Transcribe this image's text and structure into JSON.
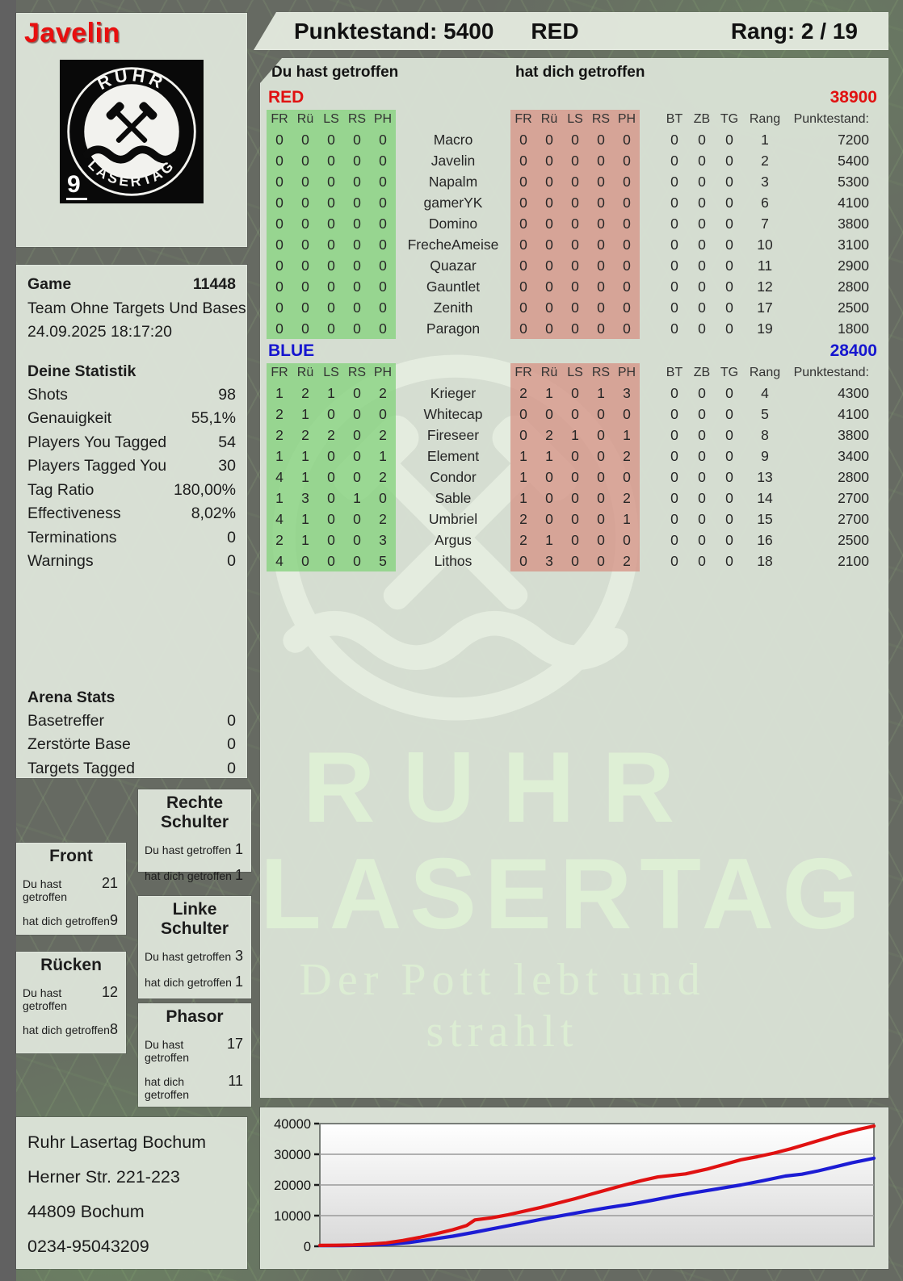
{
  "page": {
    "player_name": "Javelin",
    "header": {
      "punktestand": "Punktestand: 5400",
      "team": "RED",
      "rang": "Rang: 2 / 19"
    },
    "logo": {
      "arc_top": "RUHR",
      "arc_bottom": "LASERTAG",
      "badge": "9"
    }
  },
  "game_info": {
    "label": "Game",
    "number": "11448",
    "mode": "Team Ohne Targets Und Bases",
    "datetime": "24.09.2025 18:17:20"
  },
  "your_stats": {
    "title": "Deine Statistik",
    "rows": [
      [
        "Shots",
        "98"
      ],
      [
        "Genauigkeit",
        "55,1%"
      ],
      [
        "Players You Tagged",
        "54"
      ],
      [
        "Players Tagged You",
        "30"
      ],
      [
        "Tag Ratio",
        "180,00%"
      ],
      [
        "Effectiveness",
        "8,02%"
      ],
      [
        "Terminations",
        "0"
      ],
      [
        "Warnings",
        "0"
      ]
    ]
  },
  "arena_stats": {
    "title": "Arena Stats",
    "rows": [
      [
        "Basetreffer",
        "0"
      ],
      [
        "Zerstörte Base",
        "0"
      ],
      [
        "Targets Tagged",
        "0"
      ]
    ]
  },
  "hit_labels": {
    "given": "Du hast getroffen",
    "taken": "hat dich getroffen"
  },
  "hit_boxes": [
    {
      "title": "Front",
      "given": "21",
      "taken": "9"
    },
    {
      "title": "Rücken",
      "given": "12",
      "taken": "8"
    },
    {
      "title": "Rechte Schulter",
      "given": "1",
      "taken": "1"
    },
    {
      "title": "Linke Schulter",
      "given": "3",
      "taken": "1"
    },
    {
      "title": "Phasor",
      "given": "17",
      "taken": "11"
    }
  ],
  "score_table": {
    "given_label": "Du hast getroffen",
    "taken_label": "hat dich getroffen",
    "hit_columns": [
      "FR",
      "Rü",
      "LS",
      "RS",
      "PH"
    ],
    "extra_columns": [
      "BT",
      "ZB",
      "TG",
      "Rang",
      "Punktestand:"
    ],
    "teams": [
      {
        "name": "RED",
        "color": "#e01111",
        "total": "38900",
        "players": [
          {
            "name": "Macro",
            "given": [
              0,
              0,
              0,
              0,
              0
            ],
            "taken": [
              0,
              0,
              0,
              0,
              0
            ],
            "bt": 0,
            "zb": 0,
            "tg": 0,
            "rang": 1,
            "punktestand": 7200
          },
          {
            "name": "Javelin",
            "given": [
              0,
              0,
              0,
              0,
              0
            ],
            "taken": [
              0,
              0,
              0,
              0,
              0
            ],
            "bt": 0,
            "zb": 0,
            "tg": 0,
            "rang": 2,
            "punktestand": 5400
          },
          {
            "name": "Napalm",
            "given": [
              0,
              0,
              0,
              0,
              0
            ],
            "taken": [
              0,
              0,
              0,
              0,
              0
            ],
            "bt": 0,
            "zb": 0,
            "tg": 0,
            "rang": 3,
            "punktestand": 5300
          },
          {
            "name": "gamerYK",
            "given": [
              0,
              0,
              0,
              0,
              0
            ],
            "taken": [
              0,
              0,
              0,
              0,
              0
            ],
            "bt": 0,
            "zb": 0,
            "tg": 0,
            "rang": 6,
            "punktestand": 4100
          },
          {
            "name": "Domino",
            "given": [
              0,
              0,
              0,
              0,
              0
            ],
            "taken": [
              0,
              0,
              0,
              0,
              0
            ],
            "bt": 0,
            "zb": 0,
            "tg": 0,
            "rang": 7,
            "punktestand": 3800
          },
          {
            "name": "FrecheAmeise",
            "given": [
              0,
              0,
              0,
              0,
              0
            ],
            "taken": [
              0,
              0,
              0,
              0,
              0
            ],
            "bt": 0,
            "zb": 0,
            "tg": 0,
            "rang": 10,
            "punktestand": 3100
          },
          {
            "name": "Quazar",
            "given": [
              0,
              0,
              0,
              0,
              0
            ],
            "taken": [
              0,
              0,
              0,
              0,
              0
            ],
            "bt": 0,
            "zb": 0,
            "tg": 0,
            "rang": 11,
            "punktestand": 2900
          },
          {
            "name": "Gauntlet",
            "given": [
              0,
              0,
              0,
              0,
              0
            ],
            "taken": [
              0,
              0,
              0,
              0,
              0
            ],
            "bt": 0,
            "zb": 0,
            "tg": 0,
            "rang": 12,
            "punktestand": 2800
          },
          {
            "name": "Zenith",
            "given": [
              0,
              0,
              0,
              0,
              0
            ],
            "taken": [
              0,
              0,
              0,
              0,
              0
            ],
            "bt": 0,
            "zb": 0,
            "tg": 0,
            "rang": 17,
            "punktestand": 2500
          },
          {
            "name": "Paragon",
            "given": [
              0,
              0,
              0,
              0,
              0
            ],
            "taken": [
              0,
              0,
              0,
              0,
              0
            ],
            "bt": 0,
            "zb": 0,
            "tg": 0,
            "rang": 19,
            "punktestand": 1800
          }
        ]
      },
      {
        "name": "BLUE",
        "color": "#1616cf",
        "total": "28400",
        "players": [
          {
            "name": "Krieger",
            "given": [
              1,
              2,
              1,
              0,
              2
            ],
            "taken": [
              2,
              1,
              0,
              1,
              3
            ],
            "bt": 0,
            "zb": 0,
            "tg": 0,
            "rang": 4,
            "punktestand": 4300
          },
          {
            "name": "Whitecap",
            "given": [
              2,
              1,
              0,
              0,
              0
            ],
            "taken": [
              0,
              0,
              0,
              0,
              0
            ],
            "bt": 0,
            "zb": 0,
            "tg": 0,
            "rang": 5,
            "punktestand": 4100
          },
          {
            "name": "Fireseer",
            "given": [
              2,
              2,
              2,
              0,
              2
            ],
            "taken": [
              0,
              2,
              1,
              0,
              1
            ],
            "bt": 0,
            "zb": 0,
            "tg": 0,
            "rang": 8,
            "punktestand": 3800
          },
          {
            "name": "Element",
            "given": [
              1,
              1,
              0,
              0,
              1
            ],
            "taken": [
              1,
              1,
              0,
              0,
              2
            ],
            "bt": 0,
            "zb": 0,
            "tg": 0,
            "rang": 9,
            "punktestand": 3400
          },
          {
            "name": "Condor",
            "given": [
              4,
              1,
              0,
              0,
              2
            ],
            "taken": [
              1,
              0,
              0,
              0,
              0
            ],
            "bt": 0,
            "zb": 0,
            "tg": 0,
            "rang": 13,
            "punktestand": 2800
          },
          {
            "name": "Sable",
            "given": [
              1,
              3,
              0,
              1,
              0
            ],
            "taken": [
              1,
              0,
              0,
              0,
              2
            ],
            "bt": 0,
            "zb": 0,
            "tg": 0,
            "rang": 14,
            "punktestand": 2700
          },
          {
            "name": "Umbriel",
            "given": [
              4,
              1,
              0,
              0,
              2
            ],
            "taken": [
              2,
              0,
              0,
              0,
              1
            ],
            "bt": 0,
            "zb": 0,
            "tg": 0,
            "rang": 15,
            "punktestand": 2700
          },
          {
            "name": "Argus",
            "given": [
              2,
              1,
              0,
              0,
              3
            ],
            "taken": [
              2,
              1,
              0,
              0,
              0
            ],
            "bt": 0,
            "zb": 0,
            "tg": 0,
            "rang": 16,
            "punktestand": 2500
          },
          {
            "name": "Lithos",
            "given": [
              4,
              0,
              0,
              0,
              5
            ],
            "taken": [
              0,
              3,
              0,
              0,
              2
            ],
            "bt": 0,
            "zb": 0,
            "tg": 0,
            "rang": 18,
            "punktestand": 2100
          }
        ]
      }
    ]
  },
  "watermark": {
    "line1": "RUHR",
    "line2": "LASERTAG",
    "tagline": "Der Pott lebt und strahlt"
  },
  "address": {
    "lines": [
      "Ruhr Lasertag Bochum",
      "Herner Str. 221-223",
      "44809 Bochum",
      "0234-95043209"
    ]
  },
  "chart_data": {
    "type": "line",
    "title": "",
    "xlabel": "",
    "ylabel": "",
    "ylim": [
      0,
      40000
    ],
    "yticks": [
      0,
      10000,
      20000,
      30000,
      40000
    ],
    "grid": true,
    "legend_position": "none",
    "series": [
      {
        "name": "RED",
        "color": "#e01111",
        "x": [
          0,
          0.03,
          0.06,
          0.09,
          0.12,
          0.15,
          0.18,
          0.21,
          0.24,
          0.265,
          0.28,
          0.31,
          0.34,
          0.37,
          0.4,
          0.43,
          0.46,
          0.49,
          0.52,
          0.55,
          0.58,
          0.61,
          0.635,
          0.66,
          0.7,
          0.73,
          0.76,
          0.79,
          0.82,
          0.85,
          0.88,
          0.91,
          0.94,
          0.97,
          1.0
        ],
        "values": [
          300,
          350,
          450,
          700,
          1100,
          1900,
          2900,
          4100,
          5400,
          6800,
          8600,
          9300,
          10300,
          11500,
          12700,
          14100,
          15500,
          17000,
          18500,
          20000,
          21400,
          22600,
          23100,
          23600,
          25200,
          26700,
          28200,
          29200,
          30400,
          31800,
          33400,
          35000,
          36600,
          38000,
          39200
        ]
      },
      {
        "name": "BLUE",
        "color": "#1c1cd4",
        "x": [
          0,
          0.04,
          0.08,
          0.12,
          0.16,
          0.2,
          0.24,
          0.28,
          0.32,
          0.36,
          0.4,
          0.44,
          0.48,
          0.52,
          0.56,
          0.6,
          0.64,
          0.68,
          0.72,
          0.76,
          0.8,
          0.84,
          0.87,
          0.9,
          0.93,
          0.96,
          1.0
        ],
        "values": [
          200,
          250,
          350,
          600,
          1200,
          2200,
          3300,
          4600,
          6000,
          7400,
          8800,
          10100,
          11400,
          12600,
          13700,
          15000,
          16400,
          17600,
          18800,
          20000,
          21400,
          22900,
          23500,
          24600,
          25900,
          27200,
          28700
        ]
      }
    ]
  }
}
